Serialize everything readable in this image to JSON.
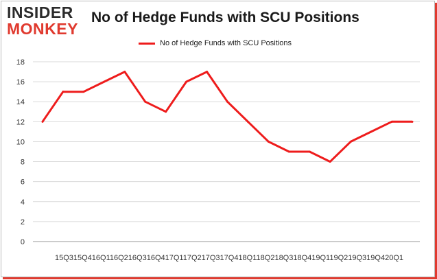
{
  "logo": {
    "line1": "INSIDER",
    "line2": "MONKEY"
  },
  "title": "No of Hedge Funds with SCU Positions",
  "legend": {
    "label": "No of Hedge Funds with SCU Positions",
    "color": "#ee1c1c"
  },
  "chart_data": {
    "type": "line",
    "title": "No of Hedge Funds with SCU Positions",
    "xlabel": "",
    "ylabel": "",
    "ylim": [
      0,
      18
    ],
    "yticks": [
      0,
      2,
      4,
      6,
      8,
      10,
      12,
      14,
      16,
      18
    ],
    "grid": true,
    "legend_position": "top",
    "categories": [
      "2015Q3",
      "2015Q4",
      "2016Q1",
      "2016Q2",
      "2016Q3",
      "2016Q4",
      "2017Q1",
      "2017Q2",
      "2017Q3",
      "2017Q4",
      "2018Q1",
      "2018Q2",
      "2018Q3",
      "2018Q4",
      "2019Q1",
      "2019Q2",
      "2019Q3",
      "2019Q4",
      "2020Q1"
    ],
    "x_axis_text": "15Q315Q416Q116Q216Q316Q417Q117Q217Q317Q418Q118Q218Q318Q419Q119Q219Q319Q420Q1",
    "series": [
      {
        "name": "No of Hedge Funds with SCU Positions",
        "color": "#ee1c1c",
        "values": [
          12,
          15,
          15,
          16,
          17,
          14,
          13,
          16,
          17,
          14,
          12,
          10,
          9,
          9,
          8,
          10,
          11,
          12,
          12
        ]
      }
    ]
  }
}
